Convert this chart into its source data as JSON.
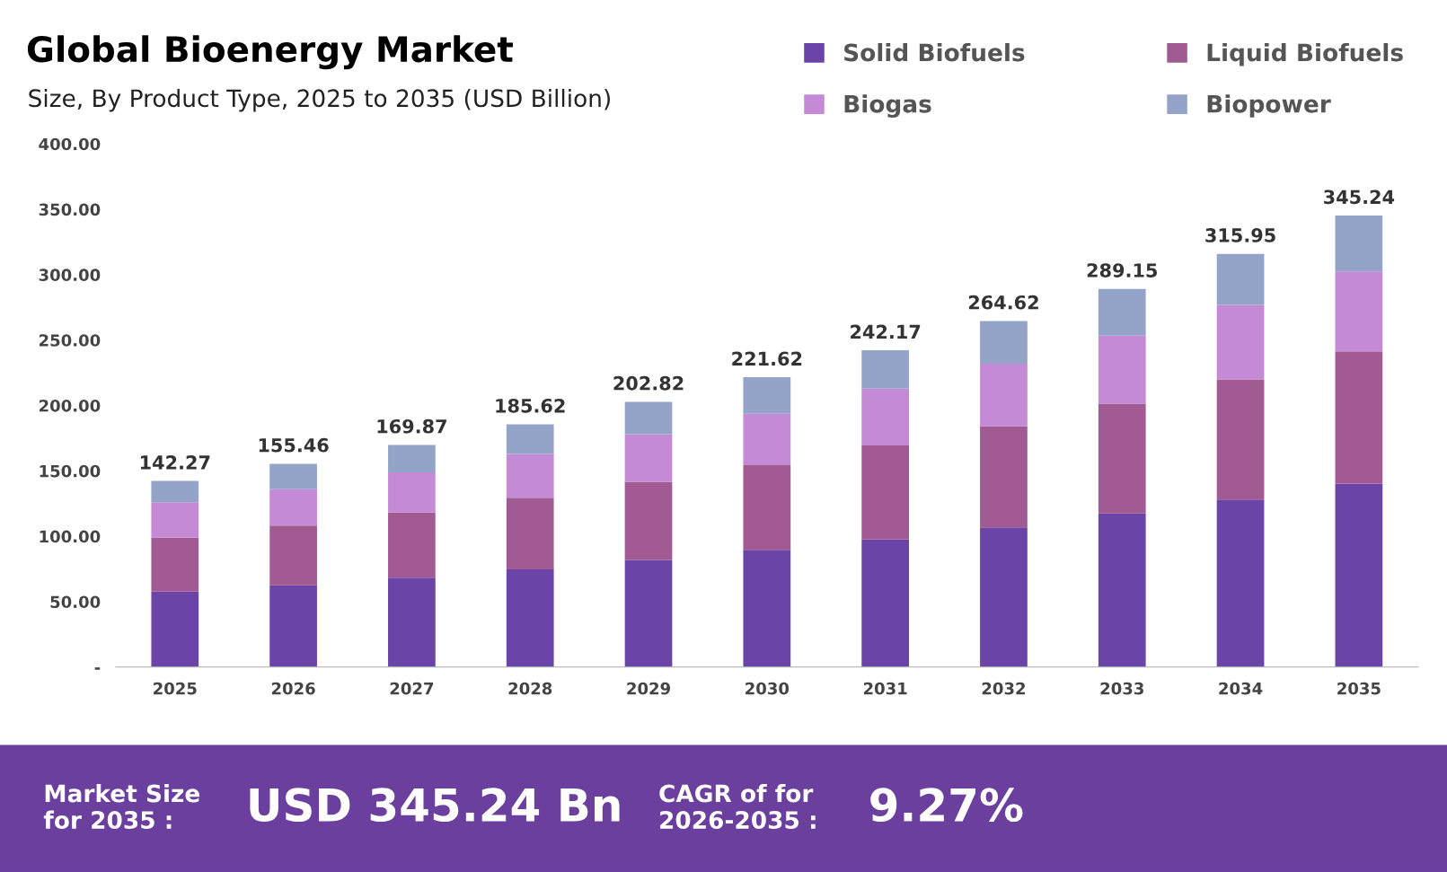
{
  "chart_data": {
    "type": "bar",
    "title": "Global Bioenergy Market",
    "subtitle": "Size, By Product Type, 2025 to 2035 (USD Billion)",
    "categories": [
      "2025",
      "2026",
      "2027",
      "2028",
      "2029",
      "2030",
      "2031",
      "2032",
      "2033",
      "2034",
      "2035"
    ],
    "stacked": true,
    "series": [
      {
        "name": "Solid Biofuels",
        "color": "#6b44a8",
        "values": [
          57.7,
          62.6,
          68.3,
          74.7,
          81.9,
          89.7,
          97.5,
          106.8,
          117.4,
          128.1,
          140.2
        ]
      },
      {
        "name": "Liquid Biofuels",
        "color": "#a25a92",
        "values": [
          41.2,
          45.6,
          49.8,
          54.8,
          59.7,
          64.7,
          71.9,
          77.5,
          84.0,
          91.9,
          101.1
        ]
      },
      {
        "name": "Biogas",
        "color": "#c58ad6",
        "values": [
          27.1,
          27.8,
          30.7,
          33.5,
          36.4,
          39.2,
          43.4,
          47.7,
          52.0,
          56.9,
          61.2
        ]
      },
      {
        "name": "Biopower",
        "color": "#94a4c9",
        "values": [
          16.27,
          19.46,
          21.07,
          22.62,
          24.82,
          28.02,
          29.37,
          32.62,
          35.75,
          39.05,
          42.74
        ]
      }
    ],
    "totals": [
      "142.27",
      "155.46",
      "169.87",
      "185.62",
      "202.82",
      "221.62",
      "242.17",
      "264.62",
      "289.15",
      "315.95",
      "345.24"
    ],
    "ylim": [
      0,
      400
    ],
    "yticks": [
      {
        "value": 0,
        "label": "-"
      },
      {
        "value": 50,
        "label": "50.00"
      },
      {
        "value": 100,
        "label": "100.00"
      },
      {
        "value": 150,
        "label": "150.00"
      },
      {
        "value": 200,
        "label": "200.00"
      },
      {
        "value": 250,
        "label": "250.00"
      },
      {
        "value": 300,
        "label": "300.00"
      },
      {
        "value": 350,
        "label": "350.00"
      },
      {
        "value": 400,
        "label": "400.00"
      }
    ],
    "grid": false,
    "legend": "top right",
    "annotations": [
      "Market Size\nfor 2035 :",
      "USD 345.24 Bn",
      "CAGR of for\n2026-2035 :",
      "9.27%"
    ]
  }
}
